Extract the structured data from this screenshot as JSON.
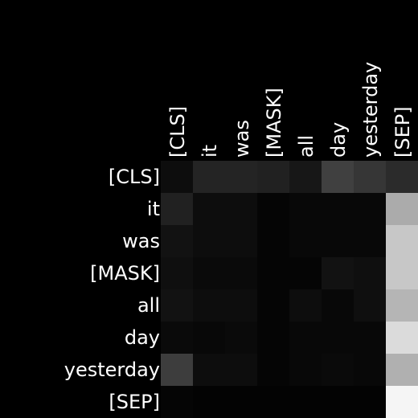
{
  "chart_data": {
    "type": "heatmap",
    "title": "",
    "xlabel": "",
    "ylabel": "",
    "x_labels": [
      "[CLS]",
      "it",
      "was",
      "[MASK]",
      "all",
      "day",
      "yesterday",
      "[SEP]"
    ],
    "y_labels": [
      "[CLS]",
      "it",
      "was",
      "[MASK]",
      "all",
      "day",
      "yesterday",
      "[SEP]"
    ],
    "colormap": "grayscale",
    "value_range": [
      0,
      1
    ],
    "grid": false,
    "values": [
      [
        0.05,
        0.14,
        0.14,
        0.13,
        0.09,
        0.25,
        0.21,
        0.17
      ],
      [
        0.13,
        0.05,
        0.05,
        0.02,
        0.03,
        0.03,
        0.03,
        0.67
      ],
      [
        0.07,
        0.05,
        0.05,
        0.02,
        0.03,
        0.03,
        0.03,
        0.78
      ],
      [
        0.06,
        0.04,
        0.04,
        0.02,
        0.02,
        0.07,
        0.06,
        0.78
      ],
      [
        0.07,
        0.05,
        0.05,
        0.02,
        0.05,
        0.03,
        0.06,
        0.71
      ],
      [
        0.04,
        0.03,
        0.04,
        0.02,
        0.03,
        0.03,
        0.03,
        0.86
      ],
      [
        0.24,
        0.05,
        0.05,
        0.02,
        0.03,
        0.04,
        0.03,
        0.69
      ],
      [
        0.02,
        0.01,
        0.01,
        0.01,
        0.01,
        0.01,
        0.01,
        0.96
      ]
    ]
  }
}
